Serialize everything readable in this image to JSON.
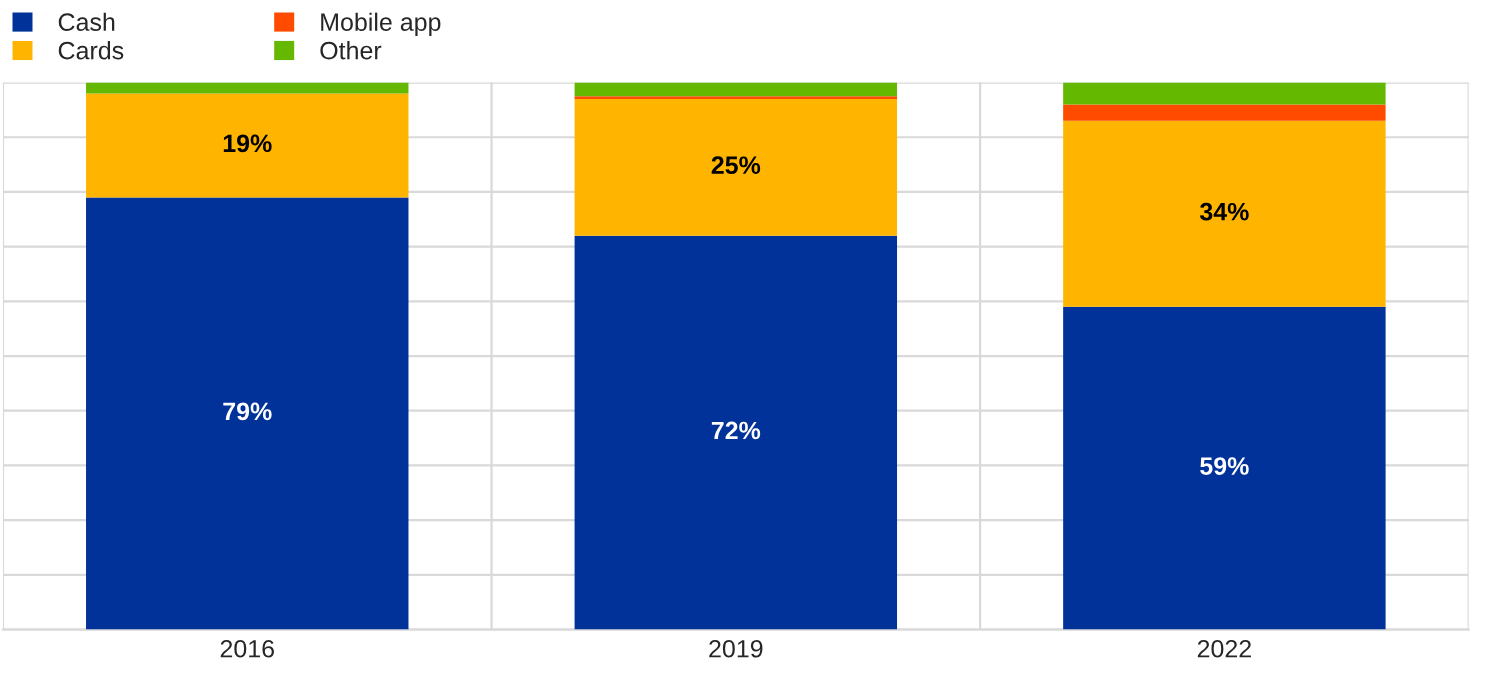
{
  "chart_data": {
    "type": "bar",
    "stacked": true,
    "categories": [
      "2016",
      "2019",
      "2022"
    ],
    "series": [
      {
        "name": "Cash",
        "color": "#003299",
        "values": [
          79,
          72,
          59
        ],
        "value_labels": [
          "79%",
          "72%",
          "59%"
        ]
      },
      {
        "name": "Cards",
        "color": "#ffb400",
        "values": [
          19,
          25,
          34
        ],
        "value_labels": [
          "19%",
          "25%",
          "34%"
        ]
      },
      {
        "name": "Mobile app",
        "color": "#ff4b00",
        "values": [
          0,
          0.5,
          3
        ]
      },
      {
        "name": "Other",
        "color": "#65b800",
        "values": [
          2,
          2.5,
          4
        ]
      }
    ],
    "ylim": [
      0,
      100
    ],
    "yticks": [
      {
        "value": 0,
        "label": null
      },
      {
        "value": 10,
        "label": null
      },
      {
        "value": 20,
        "label": null
      },
      {
        "value": 30,
        "label": null
      },
      {
        "value": 40,
        "label": null
      },
      {
        "value": 50,
        "label": null
      },
      {
        "value": 60,
        "label": null
      },
      {
        "value": 70,
        "label": null
      },
      {
        "value": 80,
        "label": null
      },
      {
        "value": 90,
        "label": null
      },
      {
        "value": 100,
        "label": null
      }
    ],
    "grid": true,
    "legend": "top left"
  }
}
